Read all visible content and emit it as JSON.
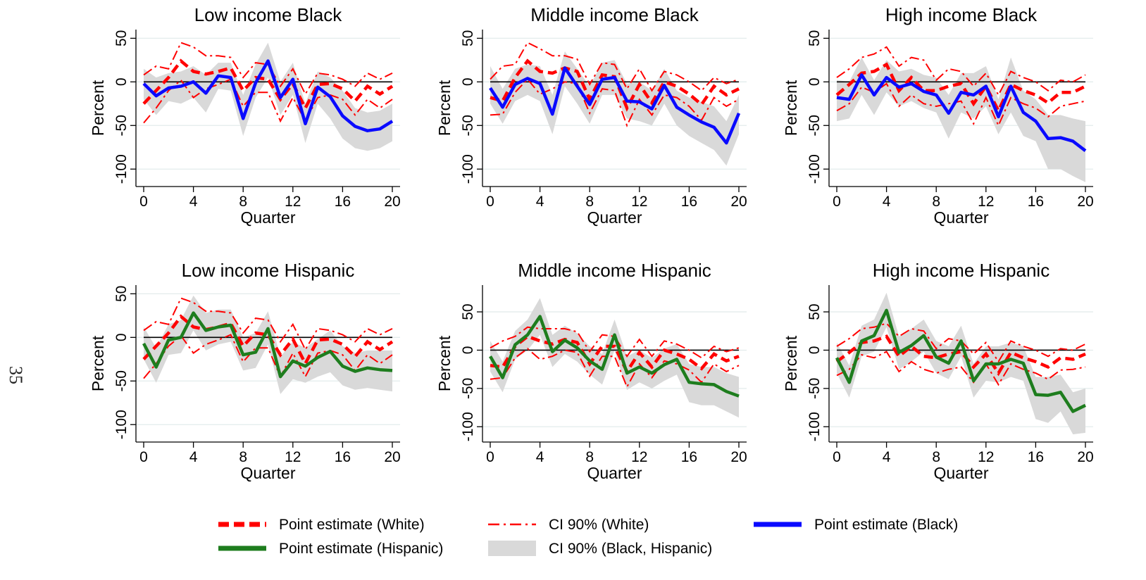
{
  "page_number": "35",
  "colors": {
    "white_series": "#ff0000",
    "black_series": "#0a0aff",
    "hispanic_series": "#1e7d1e",
    "ci_band": "#d9d9d9",
    "grid": "#e3ecec"
  },
  "legend": [
    {
      "key": "white_point",
      "label": "Point estimate (White)",
      "style": "dashed-red"
    },
    {
      "key": "white_ci",
      "label": "CI 90% (White)",
      "style": "dashdot-red"
    },
    {
      "key": "black_point",
      "label": "Point estimate (Black)",
      "style": "solid-blue"
    },
    {
      "key": "hispanic_point",
      "label": "Point estimate (Hispanic)",
      "style": "solid-green"
    },
    {
      "key": "band_ci",
      "label": "CI 90% (Black, Hispanic)",
      "style": "gray-band"
    }
  ],
  "chart_data": [
    {
      "type": "line",
      "title": "Low income Black",
      "xlabel": "Quarter",
      "ylabel": "Percent",
      "xlim": [
        0,
        20
      ],
      "ylim": [
        -120,
        60
      ],
      "xticks": [
        0,
        4,
        8,
        12,
        16,
        20
      ],
      "yticks": [
        50,
        0,
        -50,
        -100
      ],
      "x": [
        0,
        1,
        2,
        3,
        4,
        5,
        6,
        7,
        8,
        9,
        10,
        11,
        12,
        13,
        14,
        15,
        16,
        17,
        18,
        19,
        20
      ],
      "white_point": [
        -25,
        -10,
        5,
        24,
        12,
        9,
        12,
        16,
        -10,
        5,
        3,
        -20,
        -2,
        -30,
        -3,
        -2,
        -8,
        -22,
        -5,
        -14,
        -5
      ],
      "white_ci_upper": [
        8,
        18,
        15,
        45,
        40,
        30,
        30,
        28,
        5,
        22,
        20,
        -5,
        15,
        -14,
        10,
        8,
        3,
        -5,
        10,
        3,
        10
      ],
      "white_ci_lower": [
        -47,
        -30,
        -10,
        2,
        -18,
        -8,
        -3,
        3,
        -28,
        -12,
        -12,
        -45,
        -18,
        -45,
        -18,
        -15,
        -20,
        -38,
        -20,
        -30,
        -20
      ],
      "group_point": [
        -2,
        -16,
        -7,
        -5,
        0,
        -13,
        7,
        5,
        -42,
        -1,
        24,
        -18,
        3,
        -48,
        -6,
        -17,
        -39,
        -51,
        -56,
        -54,
        -45
      ],
      "group_ci_upper": [
        15,
        5,
        10,
        12,
        18,
        8,
        22,
        22,
        -15,
        20,
        45,
        0,
        22,
        -25,
        12,
        5,
        -10,
        -30,
        -35,
        -33,
        -25
      ],
      "group_ci_lower": [
        -20,
        -38,
        -22,
        -25,
        -18,
        -35,
        -8,
        -10,
        -62,
        -18,
        5,
        -38,
        -15,
        -70,
        -25,
        -42,
        -65,
        -76,
        -79,
        -76,
        -68
      ],
      "group_series": "black_point"
    },
    {
      "type": "line",
      "title": "Middle income Black",
      "xlabel": "Quarter",
      "ylabel": "Percent",
      "xlim": [
        0,
        20
      ],
      "ylim": [
        -120,
        60
      ],
      "xticks": [
        0,
        4,
        8,
        12,
        16,
        20
      ],
      "yticks": [
        50,
        0,
        -50,
        -100
      ],
      "x": [
        0,
        1,
        2,
        3,
        4,
        5,
        6,
        7,
        8,
        9,
        10,
        11,
        12,
        13,
        14,
        15,
        16,
        17,
        18,
        19,
        20
      ],
      "white_point": [
        -18,
        -22,
        5,
        24,
        12,
        10,
        16,
        12,
        -20,
        8,
        6,
        -30,
        -3,
        -24,
        0,
        -5,
        -14,
        -26,
        -5,
        -15,
        -8
      ],
      "white_ci_upper": [
        3,
        18,
        20,
        45,
        38,
        30,
        30,
        26,
        -3,
        22,
        20,
        -8,
        15,
        -10,
        12,
        8,
        0,
        -10,
        5,
        -2,
        3
      ],
      "white_ci_lower": [
        -38,
        -37,
        -12,
        3,
        -14,
        -8,
        0,
        -2,
        -36,
        -8,
        -10,
        -50,
        -20,
        -38,
        -15,
        -18,
        -28,
        -44,
        -18,
        -28,
        -20
      ],
      "group_point": [
        -7,
        -29,
        -3,
        4,
        -2,
        -37,
        16,
        -5,
        -26,
        3,
        5,
        -22,
        -23,
        -31,
        -4,
        -29,
        -38,
        -46,
        -52,
        -70,
        -36
      ],
      "group_ci_upper": [
        18,
        -8,
        15,
        20,
        18,
        -15,
        35,
        15,
        -5,
        22,
        25,
        -2,
        0,
        -10,
        15,
        -10,
        -18,
        -23,
        -28,
        -45,
        -15
      ],
      "group_ci_lower": [
        -25,
        -48,
        -22,
        -15,
        -22,
        -60,
        -5,
        -25,
        -48,
        -15,
        -15,
        -42,
        -45,
        -50,
        -25,
        -50,
        -62,
        -70,
        -78,
        -96,
        -60
      ],
      "group_series": "black_point"
    },
    {
      "type": "line",
      "title": "High income Black",
      "xlabel": "Quarter",
      "ylabel": "Percent",
      "xlim": [
        0,
        20
      ],
      "ylim": [
        -120,
        60
      ],
      "xticks": [
        0,
        4,
        8,
        12,
        16,
        20
      ],
      "yticks": [
        50,
        0,
        -50,
        -100
      ],
      "x": [
        0,
        1,
        2,
        3,
        4,
        5,
        6,
        7,
        8,
        9,
        10,
        11,
        12,
        13,
        14,
        15,
        16,
        17,
        18,
        19,
        20
      ],
      "white_point": [
        -15,
        -3,
        10,
        12,
        20,
        -10,
        5,
        -10,
        -10,
        -5,
        -2,
        -25,
        -5,
        -33,
        -3,
        -10,
        -15,
        -24,
        -12,
        -12,
        -5
      ],
      "white_ci_upper": [
        5,
        15,
        28,
        32,
        40,
        18,
        28,
        25,
        2,
        15,
        12,
        -5,
        10,
        -15,
        12,
        5,
        0,
        -10,
        2,
        0,
        8
      ],
      "white_ci_lower": [
        -33,
        -25,
        -6,
        -12,
        -2,
        -28,
        -15,
        -25,
        -28,
        -25,
        -22,
        -48,
        -18,
        -50,
        -18,
        -25,
        -30,
        -40,
        -28,
        -25,
        -22
      ],
      "group_point": [
        -18,
        -20,
        8,
        -15,
        5,
        -6,
        -2,
        -11,
        -15,
        -36,
        -12,
        -15,
        -5,
        -40,
        -5,
        -35,
        -45,
        -65,
        -64,
        -68,
        -79
      ],
      "group_ci_upper": [
        2,
        0,
        28,
        2,
        25,
        12,
        15,
        8,
        5,
        -15,
        10,
        10,
        18,
        -20,
        28,
        -10,
        -20,
        -38,
        -38,
        -42,
        -45
      ],
      "group_ci_lower": [
        -45,
        -42,
        -15,
        -38,
        -12,
        -28,
        -22,
        -30,
        -35,
        -65,
        -35,
        -42,
        -28,
        -60,
        -35,
        -62,
        -68,
        -100,
        -100,
        -108,
        -115
      ],
      "group_series": "black_point"
    },
    {
      "type": "line",
      "title": "Low income Hispanic",
      "xlabel": "Quarter",
      "ylabel": "Percent",
      "xlim": [
        0,
        20
      ],
      "ylim": [
        -120,
        60
      ],
      "xticks": [
        0,
        4,
        8,
        12,
        16,
        20
      ],
      "yticks": [
        50,
        0,
        -50,
        -100
      ],
      "x": [
        0,
        1,
        2,
        3,
        4,
        5,
        6,
        7,
        8,
        9,
        10,
        11,
        12,
        13,
        14,
        15,
        16,
        17,
        18,
        19,
        20
      ],
      "white_point": [
        -25,
        -10,
        5,
        24,
        12,
        9,
        12,
        16,
        -10,
        5,
        3,
        -20,
        -2,
        -30,
        -3,
        -2,
        -8,
        -22,
        -5,
        -14,
        -5
      ],
      "white_ci_upper": [
        8,
        18,
        15,
        45,
        40,
        30,
        30,
        28,
        5,
        22,
        20,
        -5,
        15,
        -14,
        10,
        8,
        3,
        -5,
        10,
        3,
        10
      ],
      "white_ci_lower": [
        -47,
        -30,
        -10,
        2,
        -18,
        -8,
        -3,
        3,
        -28,
        -12,
        -12,
        -45,
        -18,
        -45,
        -18,
        -15,
        -20,
        -38,
        -20,
        -30,
        -20
      ],
      "group_point": [
        -7,
        -34,
        -3,
        0,
        28,
        8,
        12,
        14,
        -20,
        -17,
        10,
        -45,
        -27,
        -33,
        -23,
        -16,
        -33,
        -39,
        -35,
        -37,
        -38
      ],
      "group_ci_upper": [
        12,
        -12,
        15,
        20,
        48,
        28,
        32,
        32,
        0,
        5,
        30,
        -22,
        -5,
        -12,
        -2,
        8,
        -10,
        -18,
        -15,
        -15,
        -15
      ],
      "group_ci_lower": [
        -25,
        -52,
        -20,
        -18,
        8,
        -15,
        -8,
        -5,
        -38,
        -35,
        -8,
        -65,
        -48,
        -52,
        -45,
        -40,
        -55,
        -60,
        -58,
        -60,
        -62
      ],
      "group_series": "hispanic_point"
    },
    {
      "type": "line",
      "title": "Middle income Hispanic",
      "xlabel": "Quarter",
      "ylabel": "Percent",
      "xlim": [
        0,
        20
      ],
      "ylim": [
        -120,
        85
      ],
      "xticks": [
        0,
        4,
        8,
        12,
        16,
        20
      ],
      "yticks": [
        50,
        0,
        -50,
        -100
      ],
      "x": [
        0,
        1,
        2,
        3,
        4,
        5,
        6,
        7,
        8,
        9,
        10,
        11,
        12,
        13,
        14,
        15,
        16,
        17,
        18,
        19,
        20
      ],
      "white_point": [
        -20,
        -22,
        5,
        18,
        12,
        8,
        14,
        10,
        -18,
        5,
        5,
        -28,
        -3,
        -22,
        0,
        -5,
        -12,
        -24,
        -5,
        -14,
        -8
      ],
      "white_ci_upper": [
        3,
        12,
        18,
        30,
        28,
        28,
        28,
        24,
        -2,
        20,
        18,
        -8,
        14,
        -8,
        12,
        8,
        0,
        -10,
        5,
        -2,
        3
      ],
      "white_ci_lower": [
        -38,
        -36,
        -10,
        2,
        -12,
        -8,
        0,
        -3,
        -34,
        -8,
        -8,
        -48,
        -18,
        -36,
        -14,
        -18,
        -26,
        -42,
        -18,
        -28,
        -20
      ],
      "group_point": [
        -8,
        -36,
        7,
        20,
        44,
        -2,
        13,
        3,
        -14,
        -25,
        20,
        -30,
        -22,
        -30,
        -19,
        -12,
        -42,
        -44,
        -45,
        -54,
        -60
      ],
      "group_ci_upper": [
        12,
        -15,
        25,
        40,
        68,
        20,
        32,
        22,
        5,
        -5,
        40,
        -8,
        0,
        -10,
        2,
        8,
        -18,
        -22,
        -22,
        -30,
        -35
      ],
      "group_ci_lower": [
        -28,
        -55,
        -12,
        0,
        20,
        -22,
        -5,
        -15,
        -32,
        -45,
        0,
        -52,
        -42,
        -50,
        -40,
        -32,
        -68,
        -72,
        -72,
        -80,
        -88
      ],
      "group_series": "hispanic_point"
    },
    {
      "type": "line",
      "title": "High income Hispanic",
      "xlabel": "Quarter",
      "ylabel": "Percent",
      "xlim": [
        0,
        20
      ],
      "ylim": [
        -120,
        85
      ],
      "xticks": [
        0,
        4,
        8,
        12,
        16,
        20
      ],
      "yticks": [
        50,
        0,
        -50,
        -100
      ],
      "x": [
        0,
        1,
        2,
        3,
        4,
        5,
        6,
        7,
        8,
        9,
        10,
        11,
        12,
        13,
        14,
        15,
        16,
        17,
        18,
        19,
        20
      ],
      "white_point": [
        -15,
        -3,
        10,
        12,
        18,
        -8,
        5,
        -8,
        -10,
        -5,
        -2,
        -22,
        -5,
        -30,
        -3,
        -10,
        -15,
        -22,
        -10,
        -12,
        -5
      ],
      "white_ci_upper": [
        5,
        15,
        28,
        30,
        35,
        18,
        28,
        25,
        2,
        15,
        12,
        -5,
        10,
        -15,
        12,
        5,
        0,
        -8,
        2,
        0,
        8
      ],
      "white_ci_lower": [
        -33,
        -25,
        -6,
        -10,
        -2,
        -28,
        -15,
        -25,
        -30,
        -25,
        -22,
        -42,
        -18,
        -45,
        -18,
        -25,
        -30,
        -38,
        -26,
        -25,
        -22
      ],
      "group_point": [
        -10,
        -42,
        12,
        19,
        52,
        -3,
        6,
        19,
        -9,
        -17,
        12,
        -40,
        -18,
        -18,
        -12,
        -17,
        -58,
        -59,
        -55,
        -80,
        -72
      ],
      "group_ci_upper": [
        10,
        -20,
        32,
        40,
        75,
        18,
        28,
        40,
        12,
        5,
        32,
        -18,
        5,
        5,
        10,
        5,
        -35,
        -35,
        -32,
        -55,
        -50
      ],
      "group_ci_lower": [
        -30,
        -62,
        -8,
        -2,
        30,
        -25,
        -15,
        -2,
        -30,
        -38,
        -8,
        -62,
        -40,
        -42,
        -35,
        -40,
        -90,
        -95,
        -80,
        -110,
        -108
      ],
      "group_series": "hispanic_point"
    }
  ]
}
